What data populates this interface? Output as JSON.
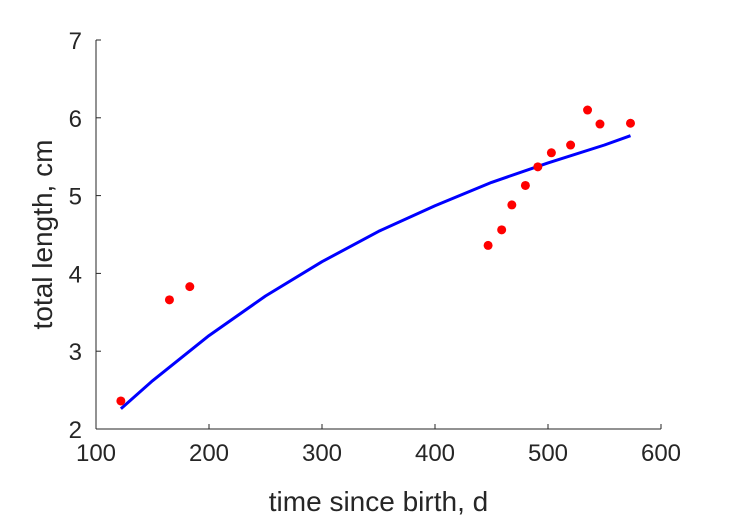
{
  "chart_data": {
    "type": "scatter",
    "title": "",
    "xlabel": "time since birth, d",
    "ylabel": "total length, cm",
    "xlim": [
      100,
      600
    ],
    "ylim": [
      2,
      7
    ],
    "xticks": [
      100,
      200,
      300,
      400,
      500,
      600
    ],
    "yticks": [
      2,
      3,
      4,
      5,
      6,
      7
    ],
    "grid": false,
    "legend": "none",
    "series": [
      {
        "kind": "points",
        "color": "#ff0000",
        "points": [
          {
            "x": 122,
            "y": 2.36
          },
          {
            "x": 165,
            "y": 3.66
          },
          {
            "x": 183,
            "y": 3.83
          },
          {
            "x": 447,
            "y": 4.36
          },
          {
            "x": 459,
            "y": 4.56
          },
          {
            "x": 468,
            "y": 4.88
          },
          {
            "x": 480,
            "y": 5.13
          },
          {
            "x": 491,
            "y": 5.37
          },
          {
            "x": 503,
            "y": 5.55
          },
          {
            "x": 520,
            "y": 5.65
          },
          {
            "x": 535,
            "y": 6.1
          },
          {
            "x": 546,
            "y": 5.92
          },
          {
            "x": 573,
            "y": 5.93
          }
        ]
      },
      {
        "kind": "curve",
        "color": "#0000ff",
        "points": [
          {
            "x": 122,
            "y": 2.26
          },
          {
            "x": 150,
            "y": 2.62
          },
          {
            "x": 200,
            "y": 3.2
          },
          {
            "x": 250,
            "y": 3.71
          },
          {
            "x": 300,
            "y": 4.15
          },
          {
            "x": 350,
            "y": 4.54
          },
          {
            "x": 400,
            "y": 4.87
          },
          {
            "x": 450,
            "y": 5.17
          },
          {
            "x": 500,
            "y": 5.42
          },
          {
            "x": 550,
            "y": 5.65
          },
          {
            "x": 573,
            "y": 5.77
          }
        ]
      }
    ]
  }
}
